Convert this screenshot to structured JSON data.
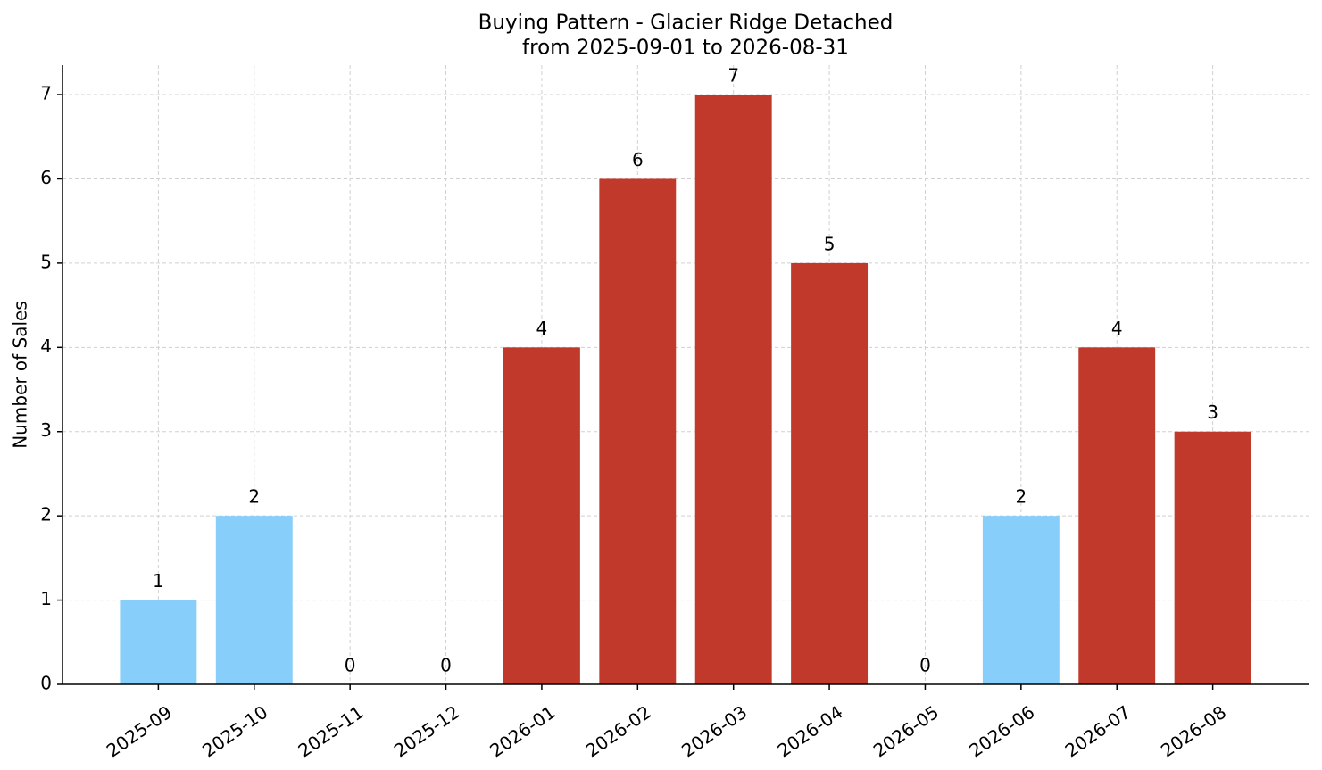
{
  "chart_data": {
    "type": "bar",
    "title": "Buying Pattern - Glacier Ridge Detached",
    "subtitle": "from 2025-09-01 to 2026-08-31",
    "y_label": "Number of Sales",
    "categories": [
      "2025-09",
      "2025-10",
      "2025-11",
      "2025-12",
      "2026-01",
      "2026-02",
      "2026-03",
      "2026-04",
      "2026-05",
      "2026-06",
      "2026-07",
      "2026-08"
    ],
    "values": [
      1,
      2,
      0,
      0,
      4,
      6,
      7,
      5,
      0,
      2,
      4,
      3
    ],
    "colors": [
      "#87cefa",
      "#87cefa",
      "#87cefa",
      "#87cefa",
      "#c0392b",
      "#c0392b",
      "#c0392b",
      "#c0392b",
      "#87cefa",
      "#87cefa",
      "#c0392b",
      "#c0392b"
    ],
    "ylim": [
      0,
      7.35
    ],
    "yticks": [
      0,
      1,
      2,
      3,
      4,
      5,
      6,
      7
    ],
    "grid": true
  }
}
